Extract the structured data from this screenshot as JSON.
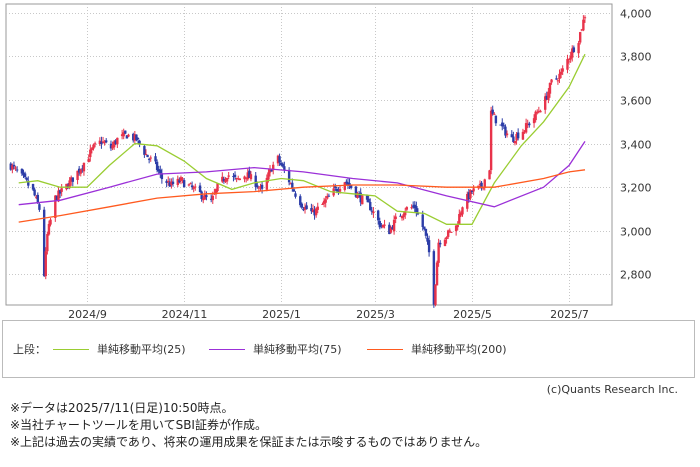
{
  "chart_data": {
    "type": "candlestick",
    "y_ticks": [
      "4,000",
      "3,800",
      "3,600",
      "3,400",
      "3,200",
      "3,000",
      "2,800"
    ],
    "y_tick_values": [
      4000,
      3800,
      3600,
      3400,
      3200,
      3000,
      2800
    ],
    "ylim": [
      2660,
      4040
    ],
    "x_ticks": [
      "2024/9",
      "2024/11",
      "2025/1",
      "2025/3",
      "2025/5",
      "2025/7"
    ],
    "x_tick_dates": [
      "2024-09-01",
      "2024-11-01",
      "2025-01-01",
      "2025-03-01",
      "2025-05-01",
      "2025-07-01"
    ],
    "xlim": [
      "2024-07-12",
      "2025-07-28"
    ],
    "grid": true,
    "colors": {
      "up": "#e8334a",
      "down": "#2c3da8",
      "ma25": "#9acd32",
      "ma75": "#9b30d8",
      "ma200": "#ff5a1f"
    },
    "close_path": [
      [
        "2024-07-15",
        3300
      ],
      [
        "2024-07-19",
        3270
      ],
      [
        "2024-07-24",
        3230
      ],
      [
        "2024-07-29",
        3180
      ],
      [
        "2024-08-02",
        3100
      ],
      [
        "2024-08-05",
        2800
      ],
      [
        "2024-08-07",
        2980
      ],
      [
        "2024-08-12",
        3150
      ],
      [
        "2024-08-16",
        3180
      ],
      [
        "2024-08-22",
        3230
      ],
      [
        "2024-08-29",
        3300
      ],
      [
        "2024-09-05",
        3380
      ],
      [
        "2024-09-10",
        3410
      ],
      [
        "2024-09-16",
        3380
      ],
      [
        "2024-09-20",
        3420
      ],
      [
        "2024-09-26",
        3440
      ],
      [
        "2024-10-02",
        3420
      ],
      [
        "2024-10-08",
        3350
      ],
      [
        "2024-10-14",
        3300
      ],
      [
        "2024-10-18",
        3240
      ],
      [
        "2024-10-24",
        3210
      ],
      [
        "2024-10-30",
        3230
      ],
      [
        "2024-11-05",
        3200
      ],
      [
        "2024-11-11",
        3170
      ],
      [
        "2024-11-18",
        3130
      ],
      [
        "2024-11-22",
        3200
      ],
      [
        "2024-11-28",
        3260
      ],
      [
        "2024-12-04",
        3230
      ],
      [
        "2024-12-10",
        3260
      ],
      [
        "2024-12-16",
        3220
      ],
      [
        "2024-12-20",
        3180
      ],
      [
        "2024-12-26",
        3290
      ],
      [
        "2024-12-30",
        3330
      ],
      [
        "2025-01-06",
        3230
      ],
      [
        "2025-01-10",
        3170
      ],
      [
        "2025-01-15",
        3110
      ],
      [
        "2025-01-21",
        3080
      ],
      [
        "2025-01-27",
        3120
      ],
      [
        "2025-02-03",
        3180
      ],
      [
        "2025-02-10",
        3230
      ],
      [
        "2025-02-14",
        3200
      ],
      [
        "2025-02-20",
        3150
      ],
      [
        "2025-02-26",
        3110
      ],
      [
        "2025-03-04",
        3030
      ],
      [
        "2025-03-10",
        3000
      ],
      [
        "2025-03-14",
        3050
      ],
      [
        "2025-03-20",
        3100
      ],
      [
        "2025-03-26",
        3110
      ],
      [
        "2025-04-01",
        3000
      ],
      [
        "2025-04-04",
        2900
      ],
      [
        "2025-04-07",
        2680
      ],
      [
        "2025-04-10",
        2950
      ],
      [
        "2025-04-15",
        2980
      ],
      [
        "2025-04-21",
        3020
      ],
      [
        "2025-04-25",
        3120
      ],
      [
        "2025-05-01",
        3180
      ],
      [
        "2025-05-07",
        3200
      ],
      [
        "2025-05-12",
        3290
      ],
      [
        "2025-05-13",
        3540
      ],
      [
        "2025-05-19",
        3480
      ],
      [
        "2025-05-26",
        3420
      ],
      [
        "2025-06-02",
        3460
      ],
      [
        "2025-06-09",
        3520
      ],
      [
        "2025-06-16",
        3600
      ],
      [
        "2025-06-20",
        3680
      ],
      [
        "2025-06-26",
        3720
      ],
      [
        "2025-07-01",
        3800
      ],
      [
        "2025-07-07",
        3880
      ],
      [
        "2025-07-11",
        3990
      ]
    ],
    "series": [
      {
        "name": "単純移動平均(25)",
        "color": "#9acd32",
        "values": [
          [
            "2024-07-20",
            3220
          ],
          [
            "2024-08-01",
            3230
          ],
          [
            "2024-08-15",
            3200
          ],
          [
            "2024-09-01",
            3200
          ],
          [
            "2024-09-15",
            3300
          ],
          [
            "2024-10-01",
            3400
          ],
          [
            "2024-10-15",
            3390
          ],
          [
            "2024-11-01",
            3320
          ],
          [
            "2024-11-15",
            3240
          ],
          [
            "2024-12-01",
            3190
          ],
          [
            "2024-12-15",
            3220
          ],
          [
            "2025-01-01",
            3240
          ],
          [
            "2025-01-15",
            3230
          ],
          [
            "2025-02-01",
            3180
          ],
          [
            "2025-02-15",
            3170
          ],
          [
            "2025-03-01",
            3160
          ],
          [
            "2025-03-15",
            3090
          ],
          [
            "2025-04-01",
            3080
          ],
          [
            "2025-04-15",
            3030
          ],
          [
            "2025-05-01",
            3030
          ],
          [
            "2025-05-15",
            3220
          ],
          [
            "2025-06-01",
            3390
          ],
          [
            "2025-06-15",
            3500
          ],
          [
            "2025-07-01",
            3660
          ],
          [
            "2025-07-11",
            3810
          ]
        ]
      },
      {
        "name": "単純移動平均(75)",
        "color": "#9b30d8",
        "values": [
          [
            "2024-07-20",
            3120
          ],
          [
            "2024-08-15",
            3140
          ],
          [
            "2024-09-15",
            3200
          ],
          [
            "2024-10-15",
            3260
          ],
          [
            "2024-11-15",
            3270
          ],
          [
            "2024-12-15",
            3290
          ],
          [
            "2025-01-15",
            3270
          ],
          [
            "2025-02-15",
            3240
          ],
          [
            "2025-03-15",
            3220
          ],
          [
            "2025-04-15",
            3160
          ],
          [
            "2025-05-15",
            3110
          ],
          [
            "2025-06-15",
            3200
          ],
          [
            "2025-07-01",
            3300
          ],
          [
            "2025-07-11",
            3410
          ]
        ]
      },
      {
        "name": "単純移動平均(200)",
        "color": "#ff5a1f",
        "values": [
          [
            "2024-07-20",
            3040
          ],
          [
            "2024-08-15",
            3070
          ],
          [
            "2024-09-15",
            3110
          ],
          [
            "2024-10-15",
            3150
          ],
          [
            "2024-11-15",
            3170
          ],
          [
            "2024-12-15",
            3180
          ],
          [
            "2025-01-15",
            3200
          ],
          [
            "2025-02-15",
            3210
          ],
          [
            "2025-03-15",
            3210
          ],
          [
            "2025-04-15",
            3200
          ],
          [
            "2025-05-15",
            3200
          ],
          [
            "2025-06-15",
            3240
          ],
          [
            "2025-07-01",
            3270
          ],
          [
            "2025-07-11",
            3280
          ]
        ]
      }
    ]
  },
  "legend": {
    "prefix": "上段：",
    "items": [
      {
        "label": "単純移動平均(25)",
        "color": "#9acd32"
      },
      {
        "label": "単純移動平均(75)",
        "color": "#9b30d8"
      },
      {
        "label": "単純移動平均(200)",
        "color": "#ff5a1f"
      }
    ]
  },
  "credit": "(c)Quants Research Inc.",
  "notes": [
    "※データは2025/7/11(日足)10:50時点。",
    "※当社チャートツールを用いてSBI証券が作成。",
    "※上記は過去の実績であり、将来の運用成果を保証または示唆するものではありません。"
  ]
}
